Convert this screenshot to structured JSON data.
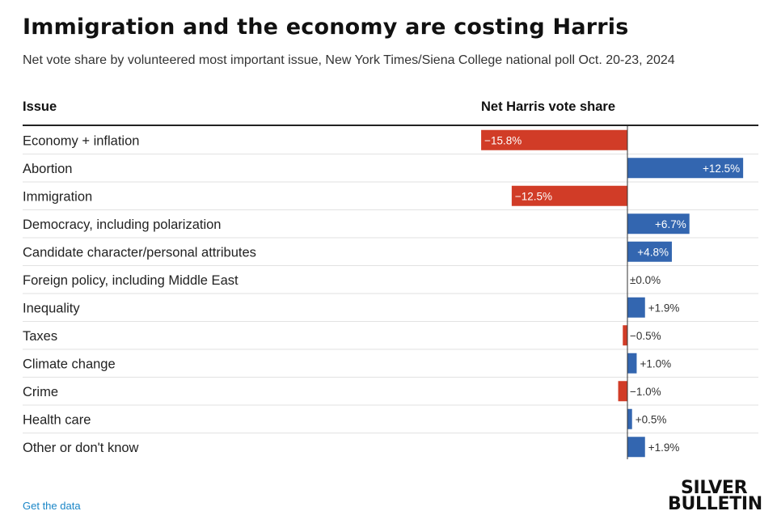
{
  "header": {
    "title": "Immigration and the economy are costing Harris",
    "subtitle": "Net vote share by volunteered most important issue, New York Times/Siena College national poll Oct. 20-23, 2024"
  },
  "table": {
    "issue_header": "Issue",
    "value_header": "Net Harris vote share"
  },
  "chart_data": {
    "type": "bar",
    "orientation": "horizontal",
    "categories": [
      "Economy + inflation",
      "Abortion",
      "Immigration",
      "Democracy, including polarization",
      "Candidate character/personal attributes",
      "Foreign policy, including Middle East",
      "Inequality",
      "Taxes",
      "Climate change",
      "Crime",
      "Health care",
      "Other or don't know"
    ],
    "values": [
      -15.8,
      12.5,
      -12.5,
      6.7,
      4.8,
      0.0,
      1.9,
      -0.5,
      1.0,
      -1.0,
      0.5,
      1.9
    ],
    "value_labels": [
      "−15.8%",
      "+12.5%",
      "−12.5%",
      "+6.7%",
      "+4.8%",
      "±0.0%",
      "+1.9%",
      "−0.5%",
      "+1.0%",
      "−1.0%",
      "+0.5%",
      "+1.9%"
    ],
    "xlim": [
      -15.8,
      14.0
    ],
    "positive_color": "#3366b0",
    "negative_color": "#d13c27"
  },
  "footer": {
    "link_text": "Get the data",
    "logo_line1": "SILVER",
    "logo_line2": "BULLETIN"
  }
}
